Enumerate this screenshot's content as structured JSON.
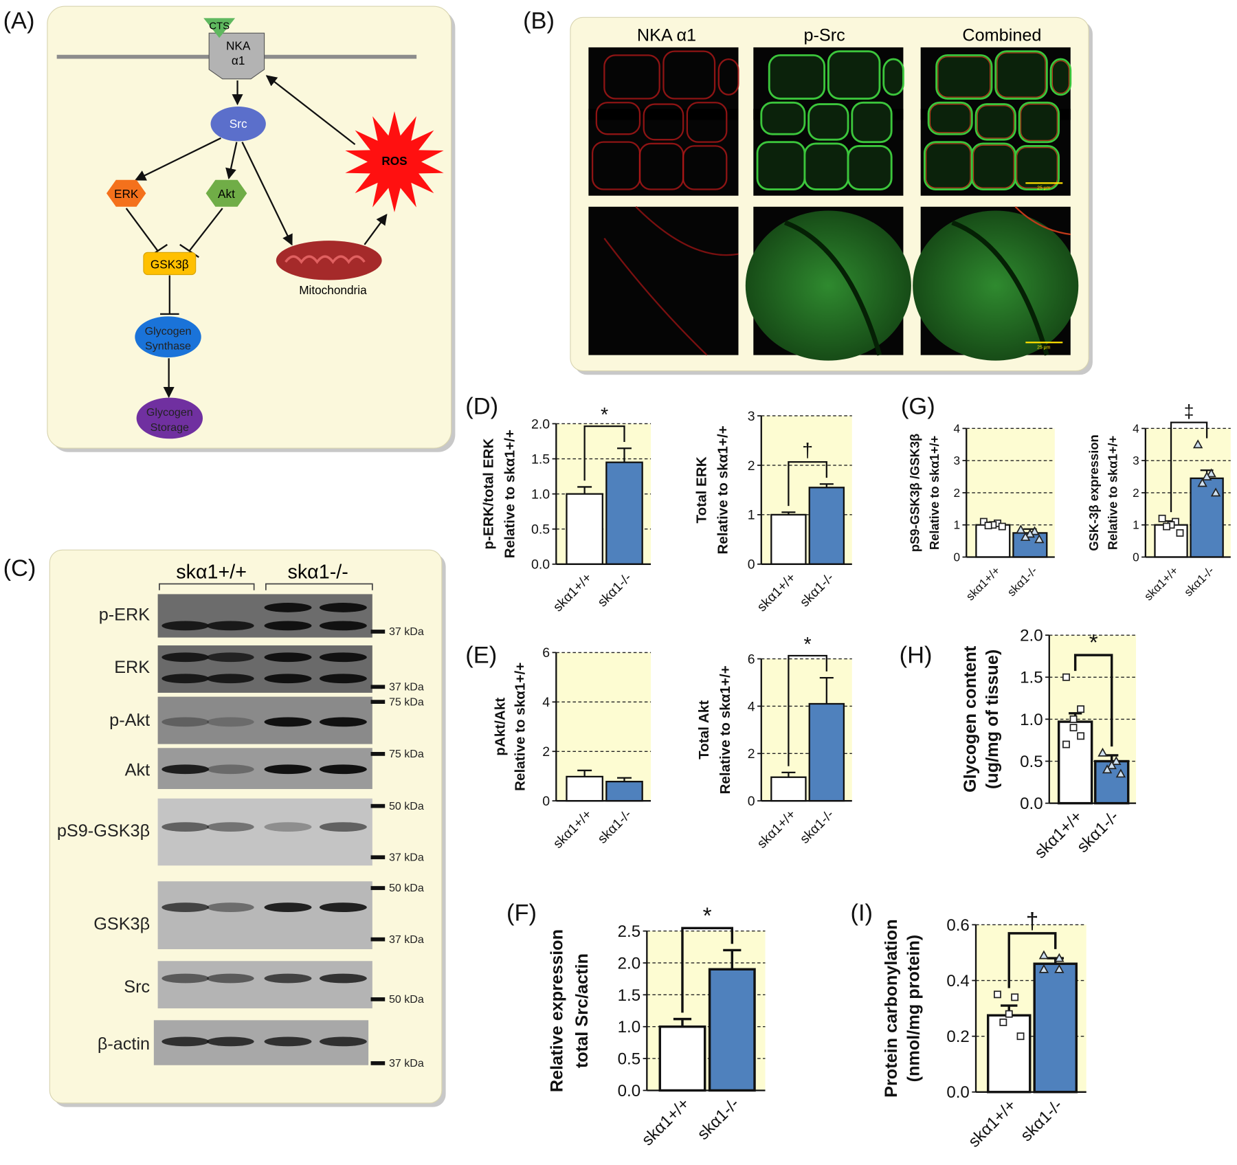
{
  "panel_labels": {
    "A": "(A)",
    "B": "(B)",
    "C": "(C)",
    "D": "(D)",
    "E": "(E)",
    "F": "(F)",
    "G": "(G)",
    "H": "(H)",
    "I": "(I)"
  },
  "diagram": {
    "nodes": {
      "cts": "CTS",
      "nka": [
        "NKA",
        "α1"
      ],
      "src": "Src",
      "erk": "ERK",
      "akt": "Akt",
      "gsk": "GSK3β",
      "ros": "ROS",
      "mito": "Mitochondria",
      "gs": [
        "Glycogen",
        "Synthase"
      ],
      "storage": [
        "Glycogen",
        "Storage"
      ]
    }
  },
  "micrographs": {
    "columns": [
      "NKA α1",
      "p-Src",
      "Combined"
    ],
    "scale_bar": "25 μm"
  },
  "blot": {
    "groups": [
      "skα1+/+",
      "skα1-/-"
    ],
    "rows": [
      {
        "name": "p-ERK",
        "markers": [
          "37 kDa"
        ]
      },
      {
        "name": "ERK",
        "markers": [
          "37 kDa"
        ]
      },
      {
        "name": "p-Akt",
        "markers": [
          "75 kDa"
        ]
      },
      {
        "name": "Akt",
        "markers": [
          "75 kDa"
        ]
      },
      {
        "name": "pS9-GSK3β",
        "markers": [
          "50 kDa",
          "37 kDa"
        ]
      },
      {
        "name": "GSK3β",
        "markers": [
          "50 kDa",
          "37 kDa"
        ]
      },
      {
        "name": "Src",
        "markers": [
          "50 kDa"
        ]
      },
      {
        "name": "β-actin",
        "markers": [
          "37 kDa"
        ]
      }
    ]
  },
  "chart_data": [
    {
      "type": "bar",
      "ylabel": [
        "p-ERK/total ERK",
        "Relative to skα1+/+"
      ],
      "categories": [
        "skα1+/+",
        "skα1-/-"
      ],
      "values": [
        1.0,
        1.45
      ],
      "errors": [
        0.1,
        0.2
      ],
      "colors": [
        "#ffffff",
        "#4f81bd"
      ],
      "ylim": [
        0,
        2
      ],
      "yticks": [
        {
          "value": 0,
          "label": "0.0"
        },
        0.5,
        {
          "value": 1,
          "label": "1.0"
        },
        1.5,
        {
          "value": 2,
          "label": "2.0"
        }
      ],
      "grid": "dashed",
      "annotation": "*"
    },
    {
      "type": "bar",
      "ylabel": [
        "Total ERK",
        "Relative to skα1+/+"
      ],
      "categories": [
        "skα1+/+",
        "skα1-/-"
      ],
      "values": [
        1.0,
        1.55
      ],
      "errors": [
        0.05,
        0.07
      ],
      "colors": [
        "#ffffff",
        "#4f81bd"
      ],
      "ylim": [
        0,
        3
      ],
      "yticks": [
        0,
        1,
        2,
        3
      ],
      "grid": "dashed",
      "annotation": "†"
    },
    {
      "type": "bar",
      "ylabel": [
        "pAkt/Akt",
        "Relative to skα1+/+"
      ],
      "categories": [
        "skα1+/+",
        "skα1-/-"
      ],
      "values": [
        0.98,
        0.78
      ],
      "errors": [
        0.25,
        0.15
      ],
      "colors": [
        "#ffffff",
        "#4f81bd"
      ],
      "ylim": [
        0,
        6
      ],
      "yticks": [
        0,
        2,
        4,
        6
      ],
      "grid": "dashed"
    },
    {
      "type": "bar",
      "ylabel": [
        "Total Akt",
        "Relative to skα1+/+"
      ],
      "categories": [
        "skα1+/+",
        "skα1-/-"
      ],
      "values": [
        1.0,
        4.1
      ],
      "errors": [
        0.2,
        1.1
      ],
      "colors": [
        "#ffffff",
        "#4f81bd"
      ],
      "ylim": [
        0,
        6
      ],
      "yticks": [
        0,
        2,
        4,
        6
      ],
      "grid": "dashed",
      "annotation": "*"
    },
    {
      "type": "bar",
      "ylabel": [
        "Relative expression",
        "total Src/actin"
      ],
      "categories": [
        "skα1+/+",
        "skα1-/-"
      ],
      "values": [
        1.0,
        1.9
      ],
      "errors": [
        0.12,
        0.3
      ],
      "colors": [
        "#ffffff",
        "#4f81bd"
      ],
      "ylim": [
        0,
        2.5
      ],
      "yticks": [
        {
          "value": 0,
          "label": "0.0"
        },
        0.5,
        {
          "value": 1,
          "label": "1.0"
        },
        1.5,
        {
          "value": 2,
          "label": "2.0"
        },
        2.5
      ],
      "grid": "dashed",
      "annotation": "*"
    },
    {
      "type": "bar",
      "ylabel": [
        "pS9-GSK3β /GSK3β",
        "Relative to skα1+/+"
      ],
      "categories": [
        "skα1+/+",
        "skα1-/-"
      ],
      "values": [
        1.0,
        0.75
      ],
      "errors": [
        0.08,
        0.12
      ],
      "colors": [
        "#ffffff",
        "#4f81bd"
      ],
      "ylim": [
        0,
        4
      ],
      "yticks": [
        0,
        1,
        2,
        3,
        4
      ],
      "grid": "dashed",
      "points": [
        [
          1.1,
          1.05,
          1.0,
          0.98,
          0.95
        ],
        [
          0.85,
          0.8,
          0.72,
          0.62,
          0.55
        ]
      ]
    },
    {
      "type": "bar",
      "ylabel": [
        "GSK-3β expression",
        "Relative to skα1+/+"
      ],
      "categories": [
        "skα1+/+",
        "skα1-/-"
      ],
      "values": [
        1.0,
        2.45
      ],
      "errors": [
        0.12,
        0.25
      ],
      "colors": [
        "#ffffff",
        "#4f81bd"
      ],
      "ylim": [
        0,
        4
      ],
      "yticks": [
        0,
        1,
        2,
        3,
        4
      ],
      "grid": "dashed",
      "annotation": "‡",
      "points": [
        [
          1.2,
          1.1,
          1.0,
          0.95,
          0.75
        ],
        [
          3.5,
          2.6,
          2.5,
          2.3,
          2.0
        ]
      ]
    },
    {
      "type": "bar",
      "ylabel": [
        "Glycogen content",
        "(ug/mg of tissue)"
      ],
      "categories": [
        "skα1+/+",
        "skα1-/-"
      ],
      "values": [
        0.97,
        0.5
      ],
      "errors": [
        0.1,
        0.07
      ],
      "colors": [
        "#ffffff",
        "#4f81bd"
      ],
      "ylim": [
        0,
        2
      ],
      "yticks": [
        {
          "value": 0,
          "label": "0.0"
        },
        0.5,
        {
          "value": 1,
          "label": "1.0"
        },
        1.5,
        {
          "value": 2,
          "label": "2.0"
        }
      ],
      "grid": "dashed",
      "annotation": "*",
      "points": [
        [
          1.5,
          1.12,
          1.0,
          0.9,
          0.8,
          0.7
        ],
        [
          0.6,
          0.5,
          0.45,
          0.4,
          0.35
        ]
      ]
    },
    {
      "type": "bar",
      "ylabel": [
        "Protein carbonylation",
        "(nmol/mg protein)"
      ],
      "categories": [
        "skα1+/+",
        "skα1-/-"
      ],
      "values": [
        0.275,
        0.46
      ],
      "errors": [
        0.035,
        0.02
      ],
      "colors": [
        "#ffffff",
        "#4f81bd"
      ],
      "ylim": [
        0,
        0.6
      ],
      "yticks": [
        {
          "value": 0,
          "label": "0.0"
        },
        0.2,
        0.4,
        0.6
      ],
      "grid": "dashed",
      "annotation": "†",
      "points": [
        [
          0.35,
          0.34,
          0.28,
          0.25,
          0.2
        ],
        [
          0.49,
          0.48,
          0.44,
          0.44
        ]
      ]
    }
  ]
}
